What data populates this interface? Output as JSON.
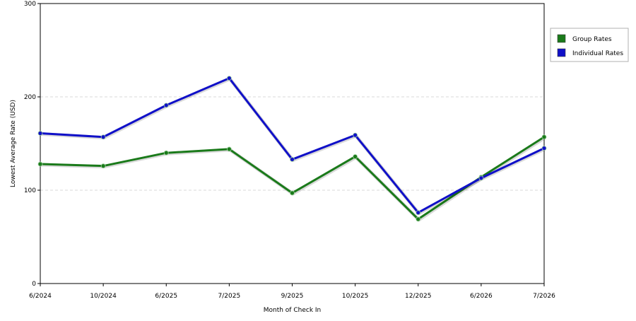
{
  "chart_data": {
    "type": "line",
    "xlabel": "Month of Check In",
    "ylabel": "Lowest Average Rate (USD)",
    "categories": [
      "6/2024",
      "10/2024",
      "6/2025",
      "7/2025",
      "9/2025",
      "10/2025",
      "12/2025",
      "6/2026",
      "7/2026"
    ],
    "ylim": [
      0,
      300
    ],
    "yticks": [
      "0",
      "100",
      "200",
      "300"
    ],
    "grid": true,
    "legend_position": "top-right",
    "series": [
      {
        "name": "Group Rates",
        "color": "#1a7a1a",
        "values": [
          128,
          126,
          140,
          144,
          97,
          136,
          69,
          114,
          157
        ]
      },
      {
        "name": "Individual Rates",
        "color": "#1010c8",
        "values": [
          161,
          157,
          191,
          220,
          133,
          159,
          76,
          113,
          145
        ]
      }
    ]
  }
}
